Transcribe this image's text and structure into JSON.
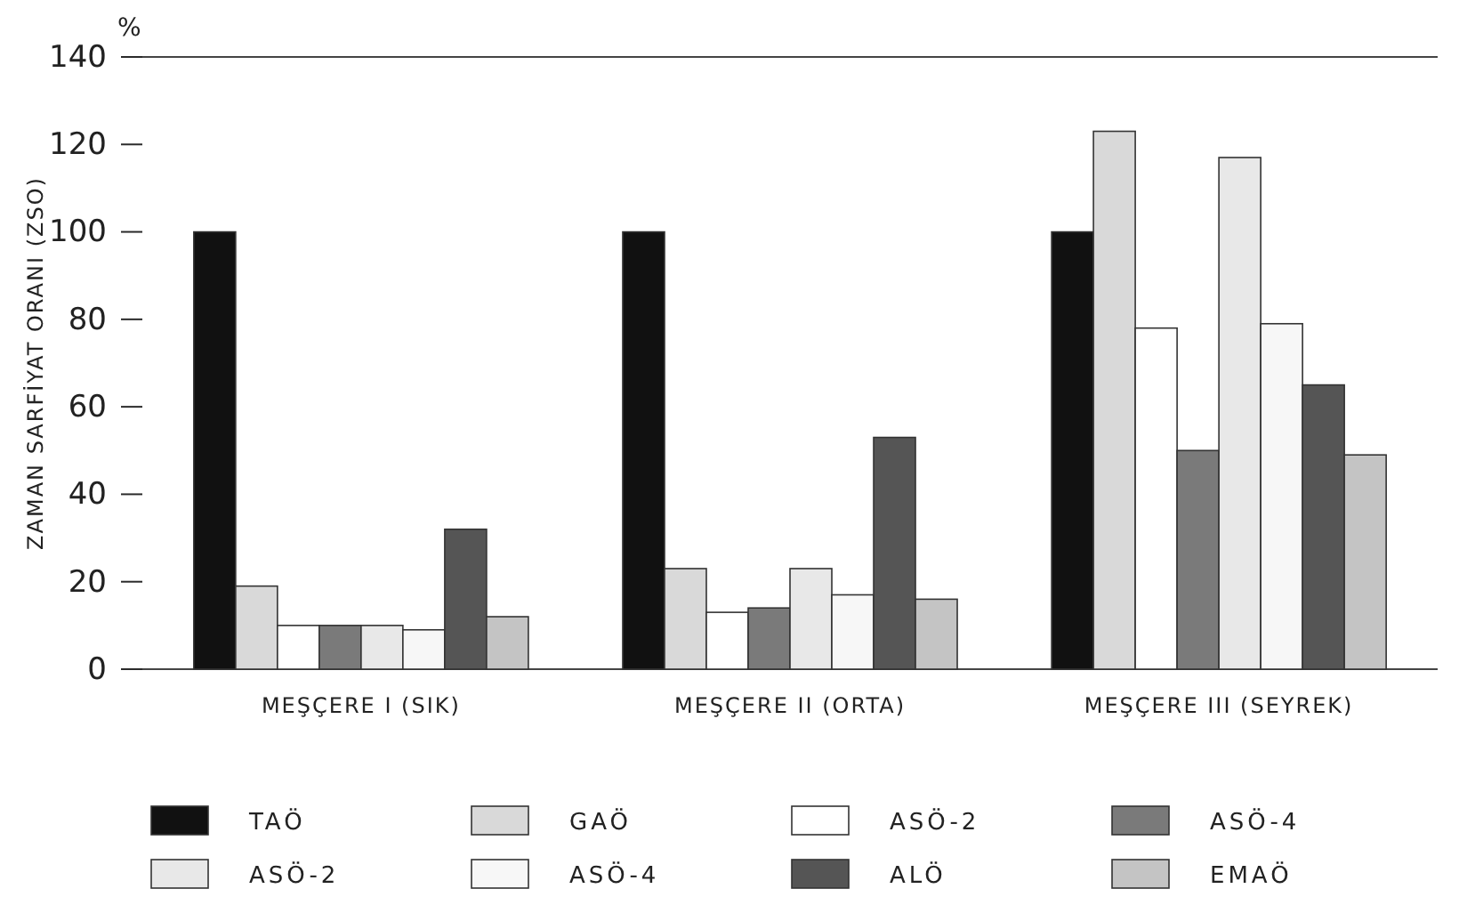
{
  "chart_data": {
    "type": "bar",
    "ylabel": "ZAMAN SARFİYAT ORANI (ZSO)",
    "annotations": [
      "%"
    ],
    "categories": [
      "MEŞÇERE I (SIK)",
      "MEŞÇERE II (ORTA)",
      "MEŞÇERE III (SEYREK)"
    ],
    "series": [
      {
        "name": "TAÖ",
        "color": "#111111",
        "values": [
          100,
          100,
          100
        ]
      },
      {
        "name": "GAÖ",
        "color": "#d9d9d9",
        "values": [
          19,
          23,
          123
        ]
      },
      {
        "name": "ASÖ-2",
        "color": "#ffffff",
        "values": [
          10,
          13,
          78
        ]
      },
      {
        "name": "ASÖ-4",
        "color": "#7a7a7a",
        "values": [
          10,
          14,
          50
        ]
      },
      {
        "name": "ASÖ-2",
        "color": "#e8e8e8",
        "values": [
          10,
          23,
          117
        ]
      },
      {
        "name": "ASÖ-4",
        "color": "#f7f7f7",
        "values": [
          9,
          17,
          79
        ]
      },
      {
        "name": "ALÖ",
        "color": "#555555",
        "values": [
          32,
          53,
          65
        ]
      },
      {
        "name": "EMAÖ",
        "color": "#c4c4c4",
        "values": [
          12,
          16,
          49
        ]
      }
    ],
    "ylim": [
      0,
      140
    ],
    "yticks": [
      0,
      20,
      40,
      60,
      80,
      100,
      120,
      140
    ],
    "grid": false,
    "legend": "bottom"
  }
}
